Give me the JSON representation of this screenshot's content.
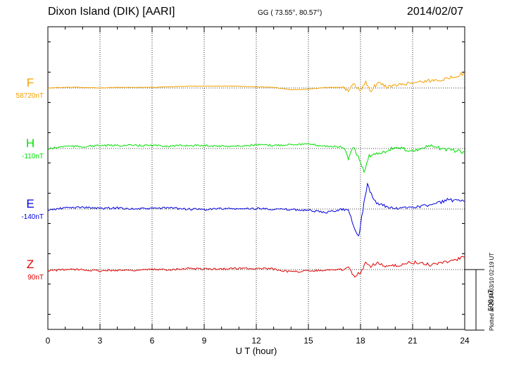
{
  "header": {
    "station": "Dixon Island (DIK)  [AARI]",
    "coords": "GG ( 73.55°,  80.57°)",
    "date": "2014/02/07",
    "plotted": "Plotted at 2014/03/10 02:19 UT"
  },
  "scale_bar": {
    "label": "500 nT",
    "value_nT": 500
  },
  "chart_data": {
    "type": "line",
    "xlabel": "U T (hour)",
    "xlim": [
      0,
      24
    ],
    "xticks": [
      0,
      3,
      6,
      9,
      12,
      15,
      18,
      21,
      24
    ],
    "xtick_labels": [
      "0",
      "3",
      "6",
      "9",
      "12",
      "15",
      "18",
      "21",
      "24"
    ],
    "units": "nT",
    "grid": true,
    "series": [
      {
        "name": "F",
        "baseline_label": "58720nT",
        "color": "#f5a000",
        "x": [
          0,
          1,
          2,
          3,
          4,
          5,
          6,
          7,
          8,
          9,
          10,
          11,
          12,
          13,
          14,
          15,
          16,
          17,
          17.3,
          17.6,
          18,
          18.3,
          18.6,
          19,
          19.5,
          20,
          21,
          22,
          23,
          24
        ],
        "y": [
          0,
          5,
          5,
          0,
          5,
          5,
          5,
          10,
          15,
          15,
          15,
          15,
          10,
          5,
          -15,
          -10,
          5,
          5,
          -30,
          30,
          -25,
          45,
          -20,
          45,
          10,
          20,
          45,
          60,
          75,
          125
        ]
      },
      {
        "name": "H",
        "baseline_label": "-110nT",
        "color": "#00e000",
        "x": [
          0,
          1,
          2,
          3,
          4,
          5,
          6,
          7,
          8,
          9,
          10,
          11,
          12,
          13,
          14,
          15,
          16,
          17,
          17.3,
          17.6,
          18,
          18.2,
          18.5,
          19,
          19.5,
          20,
          21,
          22,
          23,
          24
        ],
        "y": [
          -5,
          20,
          15,
          25,
          25,
          25,
          25,
          20,
          25,
          25,
          20,
          20,
          30,
          25,
          35,
          35,
          20,
          10,
          -80,
          10,
          -110,
          -200,
          -60,
          -40,
          -20,
          10,
          -20,
          20,
          -10,
          -30
        ]
      },
      {
        "name": "E",
        "baseline_label": "-140nT",
        "color": "#0000e0",
        "x": [
          0,
          1,
          2,
          3,
          4,
          5,
          6,
          7,
          8,
          9,
          10,
          11,
          12,
          13,
          14,
          15,
          16,
          17,
          17.3,
          17.6,
          17.9,
          18,
          18.2,
          18.4,
          18.7,
          19,
          19.5,
          20,
          21,
          22,
          23,
          24
        ],
        "y": [
          -10,
          10,
          15,
          5,
          10,
          0,
          5,
          10,
          0,
          -5,
          5,
          0,
          5,
          0,
          -5,
          -10,
          -30,
          0,
          -10,
          -130,
          -230,
          -130,
          50,
          210,
          90,
          40,
          20,
          0,
          20,
          30,
          75,
          60
        ]
      },
      {
        "name": "Z",
        "baseline_label": "90nT",
        "color": "#e00000",
        "x": [
          0,
          1,
          2,
          3,
          4,
          5,
          6,
          7,
          8,
          9,
          10,
          11,
          12,
          13,
          14,
          15,
          16,
          17,
          17.3,
          17.6,
          18,
          18.3,
          18.6,
          19,
          19.5,
          20,
          21,
          22,
          23,
          24
        ],
        "y": [
          -10,
          0,
          0,
          -10,
          -5,
          -5,
          0,
          0,
          10,
          5,
          5,
          10,
          10,
          5,
          -20,
          -10,
          -5,
          0,
          30,
          -55,
          -20,
          50,
          30,
          60,
          20,
          30,
          60,
          40,
          70,
          100
        ]
      }
    ]
  }
}
